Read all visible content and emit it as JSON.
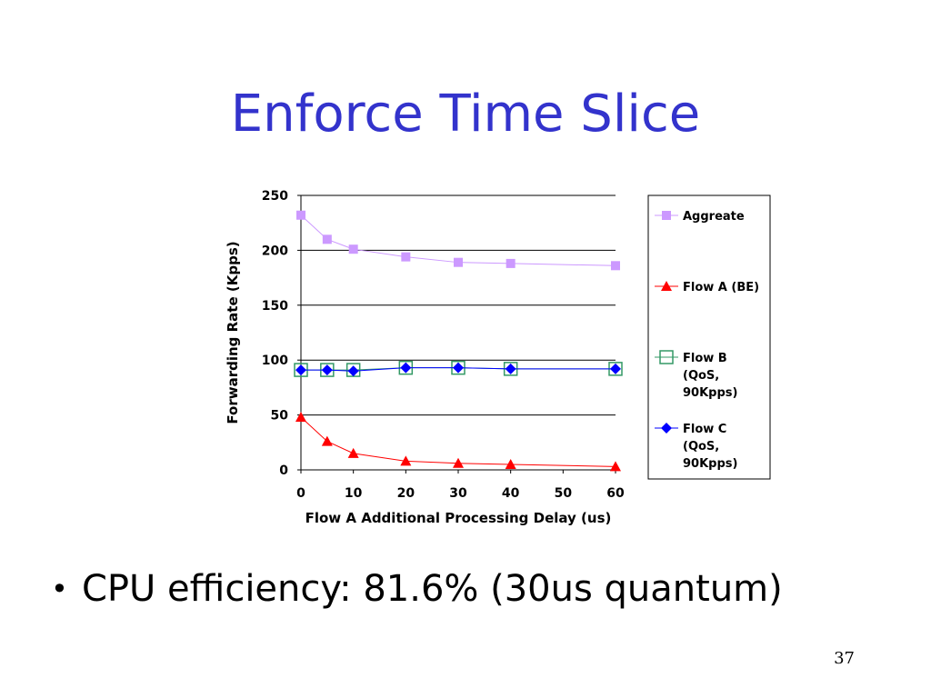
{
  "slide": {
    "title": "Enforce Time Slice",
    "bullet_marker": "•",
    "bullet": "CPU efficiency: 81.6% (30us quantum)",
    "page_number": "37"
  },
  "colors": {
    "title": "#3333cc",
    "aggregate": "#cc99ff",
    "flow_a": "#ff0000",
    "flow_b": "#339966",
    "flow_c": "#0000ff"
  },
  "chart_data": {
    "type": "line",
    "title": "",
    "xlabel": "Flow A Additional Processing Delay (us)",
    "ylabel": "Forwarding Rate (Kpps)",
    "xlim": [
      0,
      60
    ],
    "ylim": [
      0,
      250
    ],
    "xticks": [
      "0",
      "10",
      "20",
      "30",
      "40",
      "50",
      "60"
    ],
    "yticks": [
      "0",
      "50",
      "100",
      "150",
      "200",
      "250"
    ],
    "grid": "horizontal",
    "legend_position": "right",
    "series": [
      {
        "name": "Aggreate",
        "marker": "square",
        "color": "#cc99ff",
        "x": [
          0,
          5,
          10,
          20,
          30,
          40,
          60
        ],
        "y": [
          232,
          210,
          201,
          194,
          189,
          188,
          186
        ]
      },
      {
        "name": "Flow A (BE)",
        "marker": "triangle",
        "color": "#ff0000",
        "x": [
          0,
          5,
          10,
          20,
          30,
          40,
          60
        ],
        "y": [
          48,
          26,
          15,
          8,
          6,
          5,
          3
        ]
      },
      {
        "name": "Flow B (QoS, 90Kpps)",
        "marker": "open-square",
        "color": "#339966",
        "x": [
          0,
          5,
          10,
          20,
          30,
          40,
          60
        ],
        "y": [
          91,
          91,
          91,
          93,
          93,
          92,
          92
        ]
      },
      {
        "name": "Flow C (QoS, 90Kpps)",
        "marker": "diamond",
        "color": "#0000ff",
        "x": [
          0,
          5,
          10,
          20,
          30,
          40,
          60
        ],
        "y": [
          91,
          91,
          90,
          93,
          93,
          92,
          92
        ]
      }
    ],
    "legend": [
      {
        "lines": [
          "Aggreate"
        ]
      },
      {
        "lines": [
          "Flow A (BE)"
        ]
      },
      {
        "lines": [
          "Flow B",
          "(QoS,",
          "90Kpps)"
        ]
      },
      {
        "lines": [
          "Flow C",
          "(QoS,",
          "90Kpps)"
        ]
      }
    ]
  }
}
